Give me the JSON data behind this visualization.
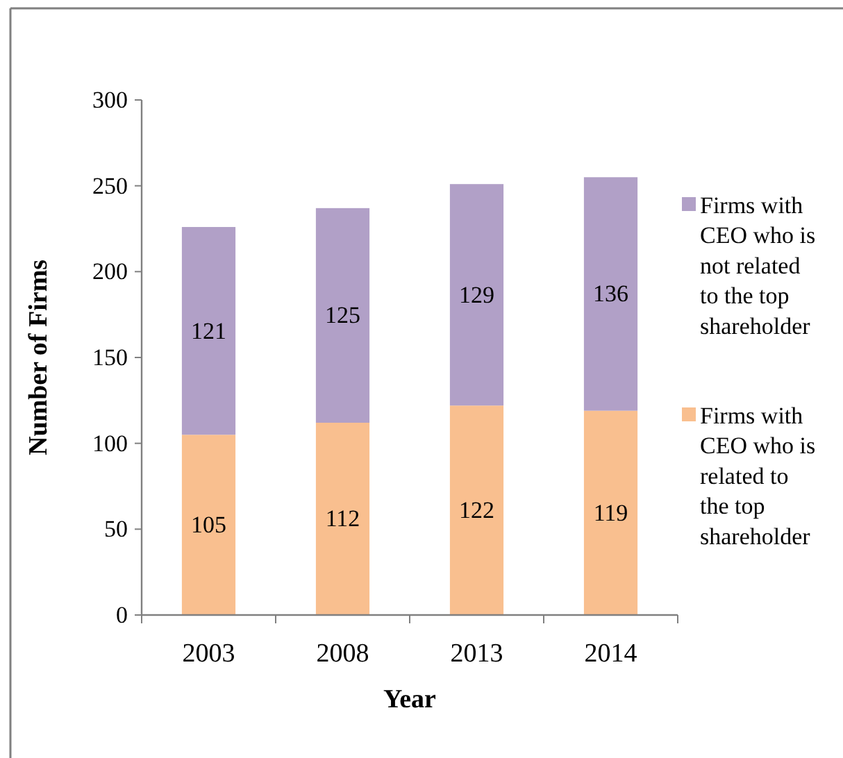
{
  "chart_data": {
    "type": "bar",
    "stacked": true,
    "xlabel": "Year",
    "ylabel": "Number of Firms",
    "categories": [
      "2003",
      "2008",
      "2013",
      "2014"
    ],
    "series": [
      {
        "name": "Firms with CEO who is related to the top shareholder",
        "color": "#f9bf8f",
        "values": [
          105,
          112,
          122,
          119
        ]
      },
      {
        "name": "Firms with CEO who is not related to the top shareholder",
        "color": "#b1a0c7",
        "values": [
          121,
          125,
          129,
          136
        ]
      }
    ],
    "ylim": [
      0,
      300
    ],
    "yticks": [
      0,
      50,
      100,
      150,
      200,
      250,
      300
    ],
    "grid": false,
    "legend": "right",
    "data_labels": true
  }
}
